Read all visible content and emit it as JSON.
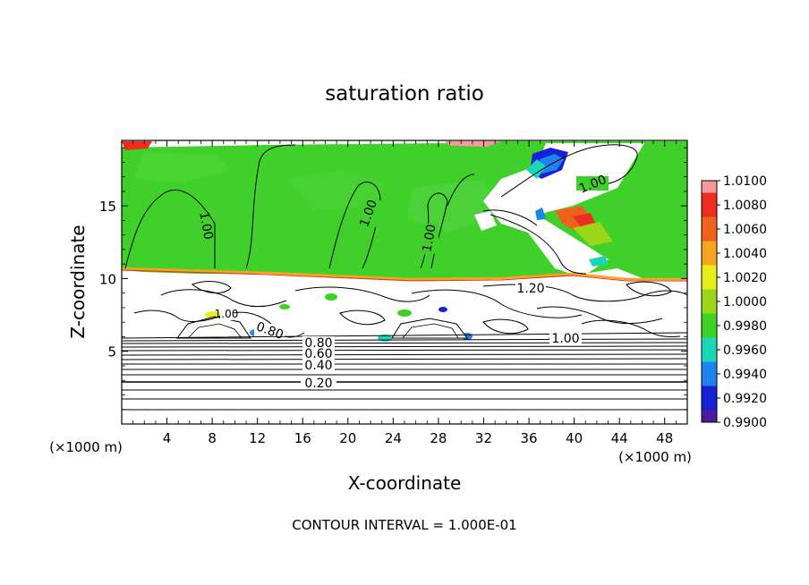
{
  "chart_data": {
    "type": "heatmap",
    "title": "saturation ratio",
    "xlabel": "X-coordinate",
    "ylabel": "Z-coordinate",
    "x_unit_left": "(×1000 m)",
    "x_unit_right": "(×1000 m)",
    "xlim": [
      0,
      50
    ],
    "ylim": [
      0,
      19.5
    ],
    "x_ticks": [
      4,
      8,
      12,
      16,
      20,
      24,
      28,
      32,
      36,
      40,
      44,
      48
    ],
    "y_ticks": [
      5,
      10,
      15
    ],
    "footer": "CONTOUR INTERVAL = 1.000E-01",
    "colorbar": {
      "ticks": [
        "1.0100",
        "1.0080",
        "1.0060",
        "1.0040",
        "1.0020",
        "1.0000",
        "0.9980",
        "0.9960",
        "0.9940",
        "0.9920",
        "0.9900"
      ],
      "colors": [
        "#f49a9a",
        "#ef2c20",
        "#f0621c",
        "#f6a41b",
        "#e8ee1a",
        "#9bd619",
        "#3dd321",
        "#1ad8b7",
        "#1d84ef",
        "#1821d8",
        "#4b1d9e"
      ]
    },
    "contour_labels": [
      "1.00",
      "1.00",
      "1.00",
      "1.00",
      "1.00",
      "1.20",
      "0.80",
      "0.80",
      "0.60",
      "0.40",
      "0.20",
      "1.00",
      "1.00"
    ],
    "contour_levels": [
      0.2,
      0.4,
      0.6,
      0.8,
      1.0,
      1.2
    ],
    "contour_interval": 0.1
  }
}
